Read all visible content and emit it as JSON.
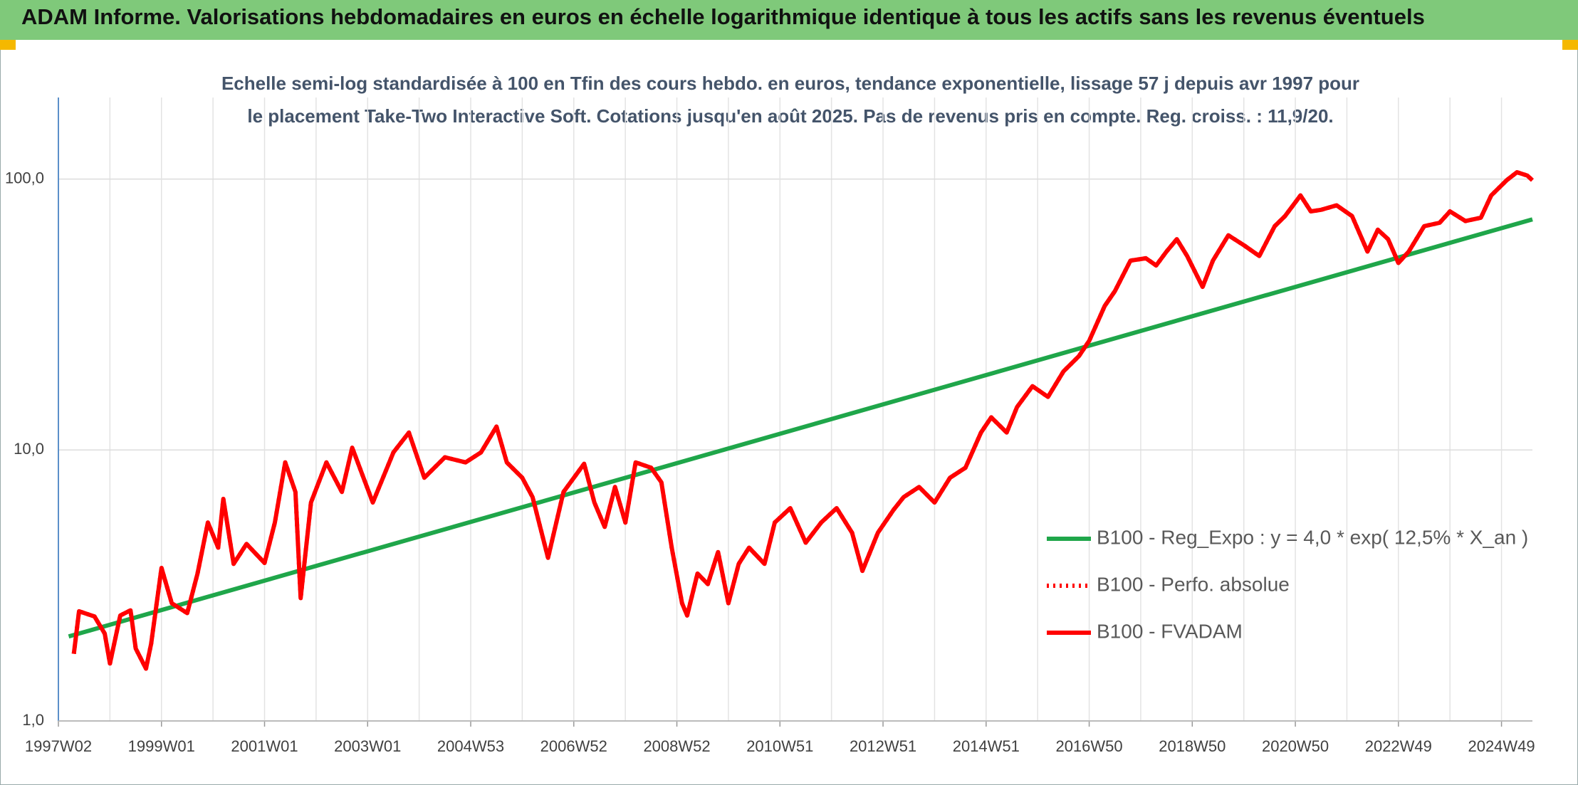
{
  "chart_data": {
    "type": "line",
    "title": "ADAM Informe. Valorisations hebdomadaires en euros en échelle logarithmique identique à tous les actifs sans les revenus éventuels",
    "subtitle": "Echelle semi-log standardisée à 100 en Tfin des cours hebdo. en euros, tendance exponentielle, lissage 57 j depuis avr 1997 pour le placement Take-Two Interactive Soft. Cotations jusqu'en août 2025. Pas de revenus pris en compte. Reg. croiss. : 11,9/20.",
    "ylog": true,
    "grid": true,
    "legend": "right",
    "xlim": [
      1997.0,
      2025.6
    ],
    "xticks": [
      {
        "value": 1997,
        "label": "1997W02"
      },
      {
        "value": 1999,
        "label": "1999W01"
      },
      {
        "value": 2001,
        "label": "2001W01"
      },
      {
        "value": 2003,
        "label": "2003W01"
      },
      {
        "value": 2005,
        "label": "2004W53"
      },
      {
        "value": 2007,
        "label": "2006W52"
      },
      {
        "value": 2009,
        "label": "2008W52"
      },
      {
        "value": 2011,
        "label": "2010W51"
      },
      {
        "value": 2013,
        "label": "2012W51"
      },
      {
        "value": 2015,
        "label": "2014W51"
      },
      {
        "value": 2017,
        "label": "2016W50"
      },
      {
        "value": 2019,
        "label": "2018W50"
      },
      {
        "value": 2021,
        "label": "2020W50"
      },
      {
        "value": 2023,
        "label": "2022W49"
      },
      {
        "value": 2025,
        "label": "2024W49"
      }
    ],
    "ylim": [
      1,
      200
    ],
    "yticks": [
      {
        "value": 1,
        "label": "1,0"
      },
      {
        "value": 10,
        "label": "10,0"
      },
      {
        "value": 100,
        "label": "100,0"
      }
    ],
    "series": [
      {
        "name": "B100 - Reg_Expo : y = 4,0 * exp( 12,5% *  X_an )",
        "color": "#1fa64a",
        "style": "solid",
        "x": [
          1997.2,
          2025.6
        ],
        "values": [
          2.05,
          71
        ]
      },
      {
        "name": "B100 - Perfo. absolue",
        "color": "#ff0000",
        "style": "dotted",
        "x": [
          1997.3,
          1997.4,
          1997.7,
          1997.9,
          1998.0,
          1998.2,
          1998.4,
          1998.5,
          1998.7,
          1998.8,
          1999.0,
          1999.2,
          1999.5,
          1999.7,
          1999.9,
          2000.1,
          2000.2,
          2000.4,
          2000.65,
          2001.0,
          2001.2,
          2001.4,
          2001.6,
          2001.7,
          2001.9,
          2002.2,
          2002.5,
          2002.7,
          2003.1,
          2003.5,
          2003.8,
          2004.1,
          2004.5,
          2004.9,
          2005.2,
          2005.5,
          2005.7,
          2006.0,
          2006.2,
          2006.5,
          2006.8,
          2007.2,
          2007.4,
          2007.6,
          2007.8,
          2008.0,
          2008.2,
          2008.5,
          2008.7,
          2008.9,
          2009.1,
          2009.2,
          2009.4,
          2009.6,
          2009.8,
          2010.0,
          2010.2,
          2010.4,
          2010.7,
          2010.9,
          2011.2,
          2011.5,
          2011.8,
          2012.1,
          2012.4,
          2012.6,
          2012.9,
          2013.2,
          2013.4,
          2013.7,
          2014.0,
          2014.3,
          2014.6,
          2014.9,
          2015.1,
          2015.4,
          2015.6,
          2015.9,
          2016.2,
          2016.5,
          2016.8,
          2017.0,
          2017.3,
          2017.5,
          2017.8,
          2018.1,
          2018.3,
          2018.5,
          2018.7,
          2018.9,
          2019.2,
          2019.4,
          2019.7,
          2020.0,
          2020.3,
          2020.6,
          2020.8,
          2021.1,
          2021.3,
          2021.5,
          2021.8,
          2022.1,
          2022.4,
          2022.6,
          2022.8,
          2023.0,
          2023.2,
          2023.5,
          2023.8,
          2024.0,
          2024.3,
          2024.6,
          2024.8,
          2025.1,
          2025.3,
          2025.5,
          2025.6
        ],
        "values": [
          1.77,
          2.54,
          2.43,
          2.1,
          1.63,
          2.45,
          2.56,
          1.85,
          1.56,
          1.93,
          3.67,
          2.72,
          2.5,
          3.5,
          5.4,
          4.36,
          6.6,
          3.8,
          4.5,
          3.83,
          5.4,
          9.0,
          7.0,
          2.84,
          6.4,
          9.0,
          7.0,
          10.2,
          6.4,
          9.8,
          11.6,
          7.9,
          9.4,
          9.0,
          9.8,
          12.2,
          9.0,
          7.9,
          6.7,
          4.0,
          7.0,
          8.9,
          6.4,
          5.2,
          7.3,
          5.4,
          9.0,
          8.6,
          7.6,
          4.36,
          2.72,
          2.45,
          3.5,
          3.2,
          4.2,
          2.72,
          3.8,
          4.36,
          3.8,
          5.4,
          6.1,
          4.55,
          5.4,
          6.1,
          4.95,
          3.58,
          4.95,
          6.0,
          6.7,
          7.3,
          6.4,
          7.9,
          8.6,
          11.6,
          13.2,
          11.6,
          14.4,
          17.2,
          15.7,
          19.5,
          22.2,
          25.3,
          34,
          38.6,
          50,
          51,
          48,
          54,
          60,
          52,
          40,
          50,
          62,
          57,
          52,
          67,
          73,
          87,
          76,
          77,
          80,
          73,
          54,
          65,
          60,
          49,
          54,
          67,
          69,
          76,
          70,
          72,
          87,
          99,
          106,
          103,
          99
        ]
      },
      {
        "name": "B100 - FVADAM",
        "color": "#ff0000",
        "style": "solid",
        "x": [
          1997.3,
          1997.4,
          1997.7,
          1997.9,
          1998.0,
          1998.2,
          1998.4,
          1998.5,
          1998.7,
          1998.8,
          1999.0,
          1999.2,
          1999.5,
          1999.7,
          1999.9,
          2000.1,
          2000.2,
          2000.4,
          2000.65,
          2001.0,
          2001.2,
          2001.4,
          2001.6,
          2001.7,
          2001.9,
          2002.2,
          2002.5,
          2002.7,
          2003.1,
          2003.5,
          2003.8,
          2004.1,
          2004.5,
          2004.9,
          2005.2,
          2005.5,
          2005.7,
          2006.0,
          2006.2,
          2006.5,
          2006.8,
          2007.2,
          2007.4,
          2007.6,
          2007.8,
          2008.0,
          2008.2,
          2008.5,
          2008.7,
          2008.9,
          2009.1,
          2009.2,
          2009.4,
          2009.6,
          2009.8,
          2010.0,
          2010.2,
          2010.4,
          2010.7,
          2010.9,
          2011.2,
          2011.5,
          2011.8,
          2012.1,
          2012.4,
          2012.6,
          2012.9,
          2013.2,
          2013.4,
          2013.7,
          2014.0,
          2014.3,
          2014.6,
          2014.9,
          2015.1,
          2015.4,
          2015.6,
          2015.9,
          2016.2,
          2016.5,
          2016.8,
          2017.0,
          2017.3,
          2017.5,
          2017.8,
          2018.1,
          2018.3,
          2018.5,
          2018.7,
          2018.9,
          2019.2,
          2019.4,
          2019.7,
          2020.0,
          2020.3,
          2020.6,
          2020.8,
          2021.1,
          2021.3,
          2021.5,
          2021.8,
          2022.1,
          2022.4,
          2022.6,
          2022.8,
          2023.0,
          2023.2,
          2023.5,
          2023.8,
          2024.0,
          2024.3,
          2024.6,
          2024.8,
          2025.1,
          2025.3,
          2025.5,
          2025.6
        ],
        "values": [
          1.77,
          2.54,
          2.43,
          2.1,
          1.63,
          2.45,
          2.56,
          1.85,
          1.56,
          1.93,
          3.67,
          2.72,
          2.5,
          3.5,
          5.4,
          4.36,
          6.6,
          3.8,
          4.5,
          3.83,
          5.4,
          9.0,
          7.0,
          2.84,
          6.4,
          9.0,
          7.0,
          10.2,
          6.4,
          9.8,
          11.6,
          7.9,
          9.4,
          9.0,
          9.8,
          12.2,
          9.0,
          7.9,
          6.7,
          4.0,
          7.0,
          8.9,
          6.4,
          5.2,
          7.3,
          5.4,
          9.0,
          8.6,
          7.6,
          4.36,
          2.72,
          2.45,
          3.5,
          3.2,
          4.2,
          2.72,
          3.8,
          4.36,
          3.8,
          5.4,
          6.1,
          4.55,
          5.4,
          6.1,
          4.95,
          3.58,
          4.95,
          6.0,
          6.7,
          7.3,
          6.4,
          7.9,
          8.6,
          11.6,
          13.2,
          11.6,
          14.4,
          17.2,
          15.7,
          19.5,
          22.2,
          25.3,
          34,
          38.6,
          50,
          51,
          48,
          54,
          60,
          52,
          40,
          50,
          62,
          57,
          52,
          67,
          73,
          87,
          76,
          77,
          80,
          73,
          54,
          65,
          60,
          49,
          54,
          67,
          69,
          76,
          70,
          72,
          87,
          99,
          106,
          103,
          99
        ]
      }
    ]
  }
}
